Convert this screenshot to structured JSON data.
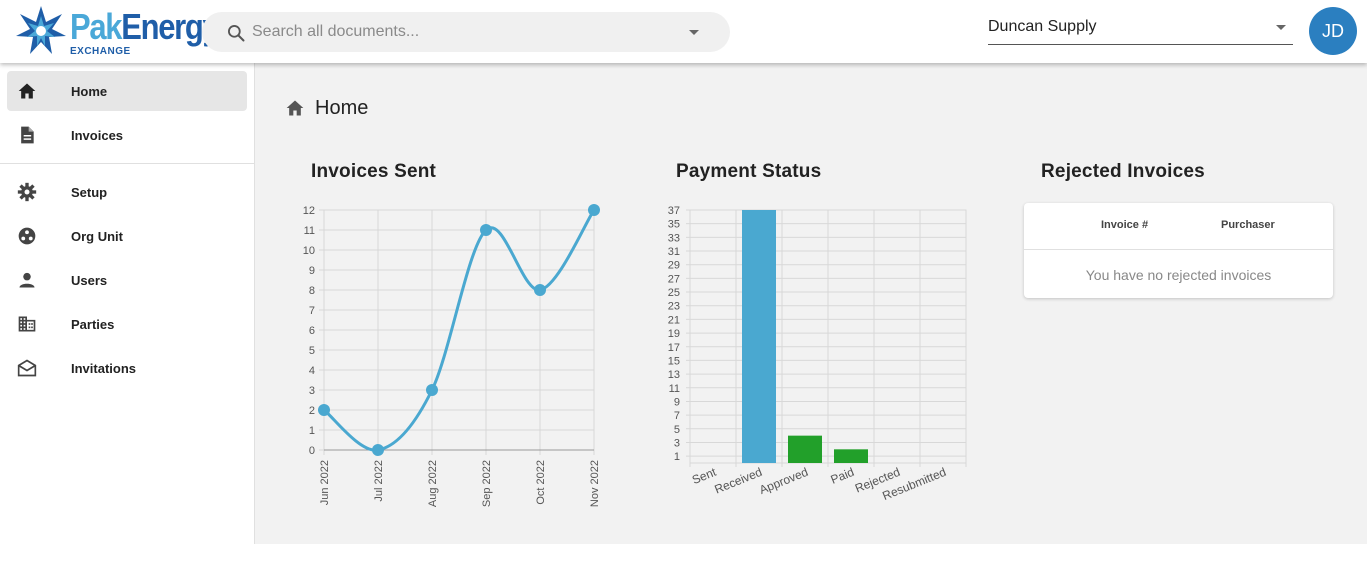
{
  "header": {
    "logo_main": "Energy",
    "logo_pak": "Pak",
    "logo_sub": "EXCHANGE",
    "search_placeholder": "Search all documents...",
    "organization": "Duncan Supply",
    "avatar_initials": "JD"
  },
  "sidebar": {
    "items": [
      {
        "label": "Home",
        "icon": "home-icon"
      },
      {
        "label": "Invoices",
        "icon": "document-icon"
      },
      {
        "label": "Setup",
        "icon": "gear-icon"
      },
      {
        "label": "Org Unit",
        "icon": "org-unit-icon"
      },
      {
        "label": "Users",
        "icon": "person-icon"
      },
      {
        "label": "Parties",
        "icon": "building-icon"
      },
      {
        "label": "Invitations",
        "icon": "envelope-icon"
      }
    ]
  },
  "main": {
    "page_title": "Home",
    "cards": {
      "invoices_sent": "Invoices Sent",
      "payment_status": "Payment Status",
      "rejected_invoices": "Rejected Invoices"
    },
    "rejected_table": {
      "columns": [
        "Invoice #",
        "Purchaser"
      ],
      "empty_message": "You have no rejected invoices"
    }
  },
  "colors": {
    "line": "#4aa8d0",
    "bar_received": "#4aa8d0",
    "bar_other": "#22a02a",
    "grid": "#d8d8d8"
  },
  "chart_data": [
    {
      "type": "line",
      "title": "Invoices Sent",
      "x": [
        "Jun 2022",
        "Jul 2022",
        "Aug 2022",
        "Sep 2022",
        "Oct 2022",
        "Nov 2022"
      ],
      "values": [
        2,
        0,
        3,
        11,
        8,
        12
      ],
      "ylim": [
        0,
        12
      ],
      "yticks": [
        0,
        1,
        2,
        3,
        4,
        5,
        6,
        7,
        8,
        9,
        10,
        11,
        12
      ],
      "grid": true
    },
    {
      "type": "bar",
      "title": "Payment Status",
      "categories": [
        "Sent",
        "Received",
        "Approved",
        "Paid",
        "Rejected",
        "Resubmitted"
      ],
      "values": [
        0,
        37,
        4,
        2,
        0,
        0
      ],
      "ylim": [
        0,
        37
      ],
      "yticks": [
        1,
        3,
        5,
        7,
        9,
        11,
        13,
        15,
        17,
        19,
        21,
        23,
        25,
        27,
        29,
        31,
        33,
        35,
        37
      ],
      "grid": true
    }
  ]
}
